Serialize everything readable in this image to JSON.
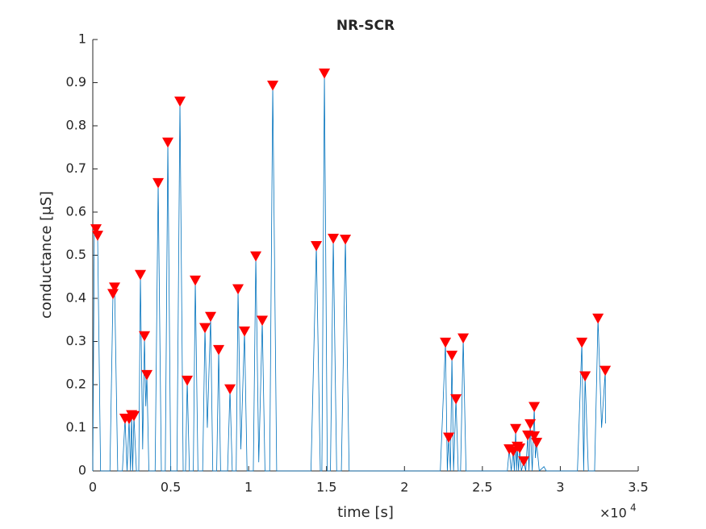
{
  "chart_data": {
    "type": "line",
    "title": "NR-SCR",
    "x_label": "time [s]",
    "y_label": "conductance [μS]",
    "x_multiplier": "×10",
    "x_multiplier_exp": "4",
    "xlim": [
      0,
      35000
    ],
    "ylim": [
      0,
      1
    ],
    "xticks": [
      0,
      {
        "value": 5000,
        "label": "0.5"
      },
      {
        "value": 10000,
        "label": "1"
      },
      {
        "value": 15000,
        "label": "1.5"
      },
      {
        "value": 20000,
        "label": "2"
      },
      {
        "value": 25000,
        "label": "2.5"
      },
      {
        "value": 30000,
        "label": "3"
      },
      {
        "value": 35000,
        "label": "3.5"
      }
    ],
    "yticks": [
      0,
      0.1,
      0.2,
      0.3,
      0.4,
      0.5,
      0.6,
      0.7,
      0.8,
      0.9,
      1
    ],
    "series": [
      {
        "type": "line",
        "color": "#0072bd",
        "x": [
          0,
          100,
          207,
          310,
          500,
          1100,
          1295,
          1400,
          1600,
          1900,
          2070,
          2200,
          2330,
          2420,
          2490,
          2560,
          2640,
          2800,
          2950,
          3055,
          3200,
          3315,
          3400,
          3470,
          3600,
          4000,
          4195,
          4400,
          4650,
          4816,
          5000,
          5400,
          5593,
          5800,
          5950,
          6060,
          6200,
          6450,
          6577,
          6750,
          7050,
          7198,
          7350,
          7560,
          7700,
          7950,
          8079,
          8200,
          8650,
          8804,
          8950,
          9200,
          9321,
          9500,
          9736,
          9900,
          10300,
          10461,
          10650,
          10875,
          11050,
          11350,
          11548,
          11800,
          12000,
          14000,
          14345,
          14600,
          14700,
          14863,
          15050,
          15250,
          15432,
          15650,
          15950,
          16209,
          16450,
          22300,
          22631,
          22750,
          22838,
          22950,
          23045,
          23150,
          23304,
          23450,
          23600,
          23770,
          23950,
          26600,
          26722,
          26850,
          26981,
          27050,
          27136,
          27190,
          27240,
          27320,
          27395,
          27500,
          27654,
          27780,
          27913,
          27990,
          28068,
          28200,
          28327,
          28400,
          28482,
          28650,
          28950,
          29100,
          31100,
          31383,
          31500,
          31590,
          31800,
          32200,
          32419,
          32650,
          32885,
          32900
        ],
        "values": [
          0,
          0.56,
          0.56,
          0.545,
          0,
          0,
          0.41,
          0.425,
          0,
          0,
          0.121,
          0,
          0.12,
          0,
          0.129,
          0,
          0.127,
          0,
          0,
          0.454,
          0.05,
          0.312,
          0.15,
          0.222,
          0,
          0,
          0.667,
          0,
          0,
          0.761,
          0,
          0,
          0.856,
          0,
          0,
          0.209,
          0,
          0,
          0.441,
          0,
          0,
          0.331,
          0.1,
          0.357,
          0,
          0,
          0.28,
          0,
          0,
          0.189,
          0,
          0,
          0.421,
          0.05,
          0.323,
          0,
          0,
          0.497,
          0.02,
          0.348,
          0,
          0,
          0.893,
          0,
          0,
          0,
          0.521,
          0,
          0,
          0.921,
          0,
          0,
          0.538,
          0,
          0,
          0.536,
          0,
          0,
          0.297,
          0,
          0.077,
          0,
          0.267,
          0,
          0.166,
          0,
          0,
          0.307,
          0,
          0,
          0.05,
          0,
          0.045,
          0,
          0.097,
          0,
          0.056,
          0,
          0.052,
          0,
          0.022,
          0,
          0.082,
          0,
          0.108,
          0,
          0.148,
          0.03,
          0.065,
          0,
          0.01,
          0,
          0,
          0.297,
          0,
          0.219,
          0,
          0,
          0.353,
          0.1,
          0.232,
          0.11
        ]
      },
      {
        "type": "markers",
        "color": "#ff0000",
        "x": [
          207,
          310,
          1295,
          1400,
          2070,
          2330,
          2490,
          2640,
          3055,
          3315,
          3470,
          4195,
          4816,
          5593,
          6060,
          6577,
          7198,
          7560,
          8079,
          8804,
          9321,
          9736,
          10461,
          10875,
          11548,
          14345,
          14863,
          15432,
          16209,
          22631,
          22838,
          23045,
          23304,
          23770,
          26722,
          26981,
          27136,
          27240,
          27395,
          27654,
          27913,
          28068,
          28327,
          28327,
          28482,
          31383,
          31590,
          32419,
          32885
        ],
        "values": [
          0.56,
          0.545,
          0.41,
          0.425,
          0.121,
          0.12,
          0.129,
          0.127,
          0.454,
          0.312,
          0.222,
          0.667,
          0.761,
          0.856,
          0.209,
          0.441,
          0.331,
          0.357,
          0.28,
          0.189,
          0.421,
          0.323,
          0.497,
          0.348,
          0.893,
          0.521,
          0.921,
          0.538,
          0.536,
          0.297,
          0.077,
          0.267,
          0.166,
          0.307,
          0.05,
          0.045,
          0.097,
          0.056,
          0.052,
          0.022,
          0.082,
          0.108,
          0.148,
          0.08,
          0.065,
          0.297,
          0.219,
          0.353,
          0.232
        ]
      }
    ]
  }
}
